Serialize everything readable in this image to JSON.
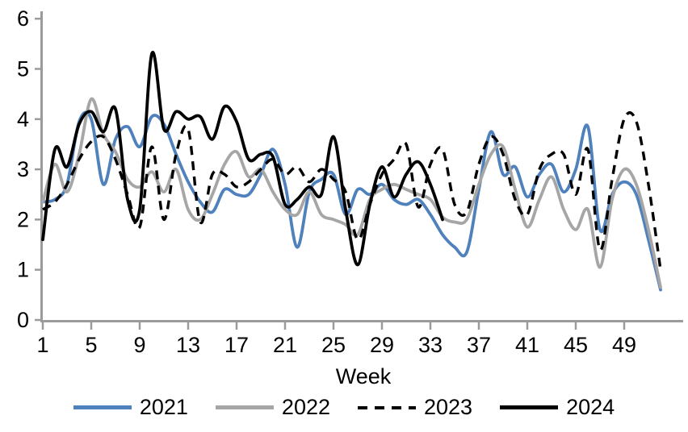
{
  "chart_data": {
    "type": "line",
    "title": "",
    "xlabel": "Week",
    "ylabel": "",
    "xlim": [
      1,
      52
    ],
    "ylim": [
      0,
      6
    ],
    "grid": false,
    "legend_position": "bottom",
    "axis_color": "#9B9B9B",
    "x_ticks": [
      1,
      5,
      9,
      13,
      17,
      21,
      25,
      29,
      33,
      37,
      41,
      45,
      49
    ],
    "y_ticks": [
      0,
      1,
      2,
      3,
      4,
      5,
      6
    ],
    "x": [
      1,
      2,
      3,
      4,
      5,
      6,
      7,
      8,
      9,
      10,
      11,
      12,
      13,
      14,
      15,
      16,
      17,
      18,
      19,
      20,
      21,
      22,
      23,
      24,
      25,
      26,
      27,
      28,
      29,
      30,
      31,
      32,
      33,
      34,
      35,
      36,
      37,
      38,
      39,
      40,
      41,
      42,
      43,
      44,
      45,
      46,
      47,
      48,
      49,
      50,
      51,
      52
    ],
    "series": [
      {
        "name": "2021",
        "color": "#4F81BD",
        "style": "solid",
        "values": [
          2.35,
          2.4,
          2.7,
          3.95,
          4.0,
          2.7,
          3.6,
          3.85,
          3.45,
          4.05,
          3.9,
          3.3,
          2.75,
          2.35,
          2.15,
          2.6,
          2.5,
          2.5,
          2.9,
          3.4,
          2.7,
          1.45,
          2.55,
          2.8,
          2.9,
          2.1,
          2.6,
          2.5,
          2.7,
          2.4,
          2.3,
          2.4,
          2.1,
          1.7,
          1.45,
          1.35,
          2.6,
          3.75,
          2.9,
          3.05,
          2.45,
          2.9,
          3.1,
          2.55,
          3.0,
          3.85,
          1.8,
          2.5,
          2.75,
          2.5,
          1.6,
          0.6
        ]
      },
      {
        "name": "2022",
        "color": "#A6A6A6",
        "style": "solid",
        "values": [
          2.35,
          3.1,
          2.55,
          3.3,
          4.4,
          3.7,
          3.35,
          2.8,
          2.65,
          2.95,
          2.55,
          3.0,
          2.2,
          2.0,
          2.5,
          3.1,
          3.35,
          2.85,
          3.0,
          2.55,
          2.2,
          2.1,
          2.55,
          2.1,
          2.0,
          1.9,
          1.7,
          2.4,
          2.6,
          2.7,
          2.6,
          2.5,
          2.4,
          2.05,
          1.95,
          2.0,
          2.7,
          3.3,
          3.45,
          2.6,
          1.85,
          2.4,
          2.85,
          2.2,
          1.8,
          2.2,
          1.05,
          2.4,
          3.0,
          2.7,
          1.8,
          0.65
        ]
      },
      {
        "name": "2023",
        "color": "#000000",
        "style": "dashed",
        "values": [
          2.2,
          2.35,
          2.7,
          3.2,
          3.55,
          3.65,
          3.2,
          2.5,
          1.85,
          3.45,
          2.0,
          3.3,
          3.8,
          1.95,
          2.9,
          2.9,
          2.65,
          2.75,
          3.0,
          3.2,
          2.9,
          3.05,
          2.75,
          3.0,
          2.8,
          2.55,
          1.6,
          2.3,
          2.9,
          3.2,
          3.5,
          2.25,
          3.1,
          3.4,
          2.3,
          2.15,
          3.1,
          3.65,
          3.3,
          2.4,
          2.1,
          3.0,
          3.3,
          3.3,
          2.5,
          3.4,
          1.4,
          2.8,
          4.0,
          3.95,
          2.7,
          1.0
        ]
      },
      {
        "name": "2024",
        "color": "#000000",
        "style": "solid",
        "values": [
          1.6,
          3.4,
          3.05,
          3.9,
          4.15,
          3.75,
          4.2,
          2.4,
          2.2,
          5.3,
          3.8,
          4.15,
          4.0,
          4.05,
          3.6,
          4.25,
          3.95,
          3.2,
          3.3,
          3.25,
          2.3,
          2.4,
          2.65,
          2.5,
          3.65,
          2.2,
          1.1,
          2.3,
          3.05,
          2.45,
          2.9,
          3.15,
          2.7,
          2.0,
          null,
          null,
          null,
          null,
          null,
          null,
          null,
          null,
          null,
          null,
          null,
          null,
          null,
          null,
          null,
          null,
          null,
          null
        ]
      }
    ]
  },
  "legend": {
    "items": [
      {
        "label": "2021"
      },
      {
        "label": "2022"
      },
      {
        "label": "2023"
      },
      {
        "label": "2024"
      }
    ]
  }
}
